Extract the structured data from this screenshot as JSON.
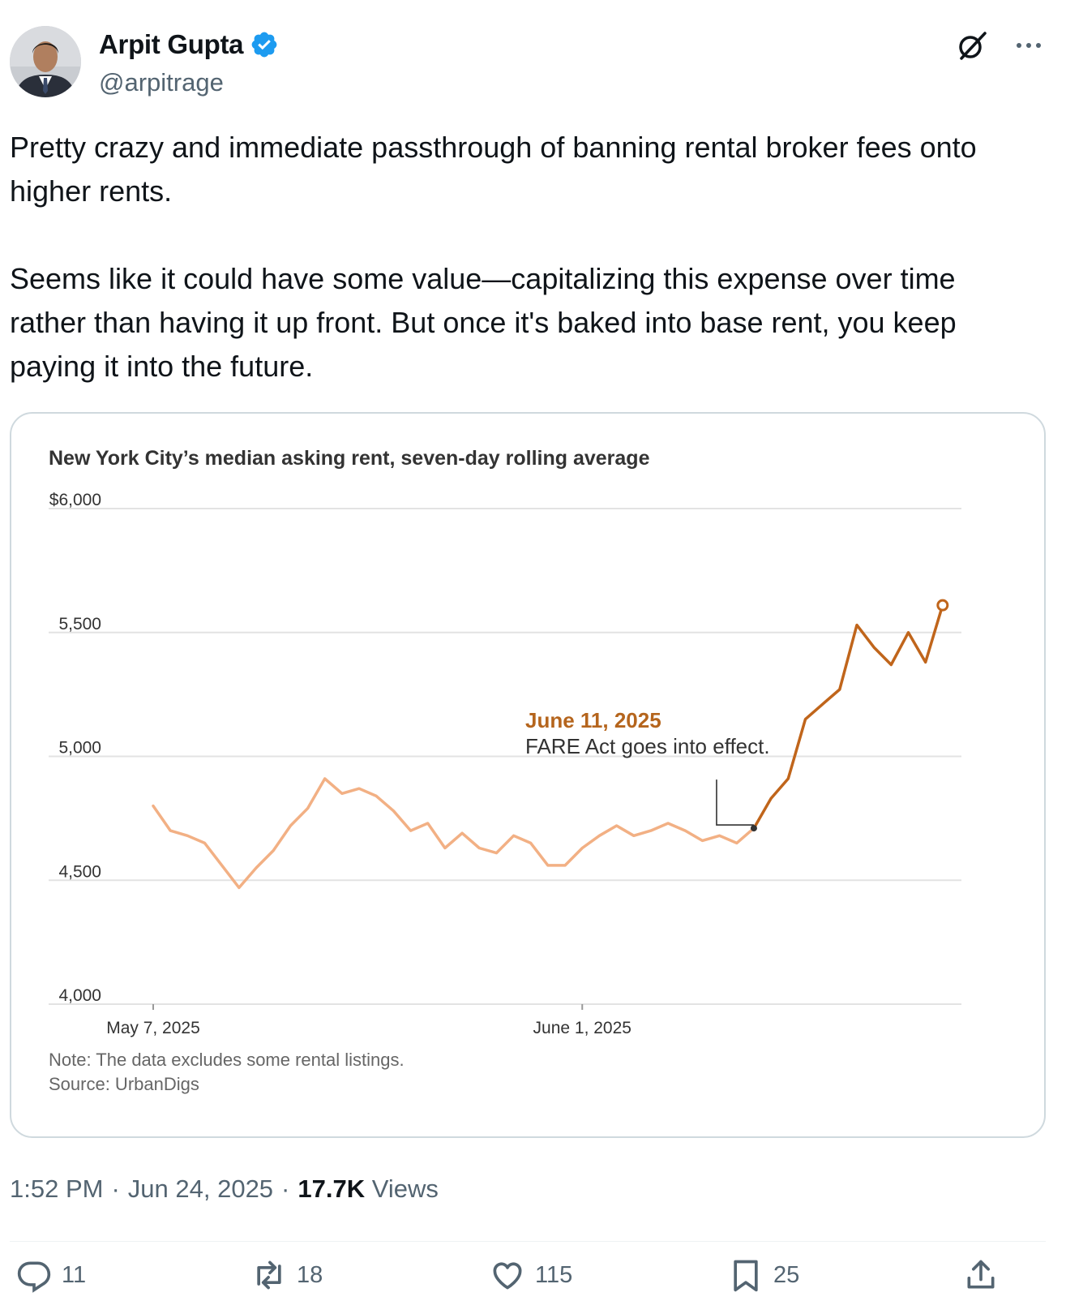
{
  "author": {
    "name": "Arpit Gupta",
    "handle": "@arpitrage",
    "verified": true
  },
  "tweet": {
    "paragraphs": [
      "Pretty crazy and immediate passthrough of banning rental broker fees onto higher rents.",
      "Seems like it could have some value—capitalizing this expense over time rather than having it up front. But once it's baked into base rent, you keep paying it into the future."
    ],
    "time": "1:52 PM",
    "separator": "·",
    "date": "Jun 24, 2025",
    "views_count": "17.7K",
    "views_label": "Views"
  },
  "actions": {
    "replies": "11",
    "reposts": "18",
    "likes": "115",
    "bookmarks": "25"
  },
  "icons": {
    "grok": "grok-icon",
    "more": "more-icon",
    "reply": "reply-icon",
    "repost": "repost-icon",
    "like": "like-icon",
    "bookmark": "bookmark-icon",
    "share": "share-icon"
  },
  "colors": {
    "verified_blue": "#1d9bf0",
    "before_line": "#f2b084",
    "after_line": "#c0651b",
    "annotation_date": "#b5651d"
  },
  "chart_data": {
    "type": "line",
    "title": "New York City’s median asking rent, seven-day rolling average",
    "y_ticks": [
      "$6,000",
      "5,500",
      "5,000",
      "4,500",
      "4,000"
    ],
    "y_tick_values": [
      6000,
      5500,
      5000,
      4500,
      4000
    ],
    "ylim": [
      4000,
      6000
    ],
    "x_ticks": [
      {
        "label": "May 7, 2025",
        "day": 0
      },
      {
        "label": "June 1, 2025",
        "day": 25
      }
    ],
    "series": [
      {
        "segment": "before",
        "x": [
          0,
          1,
          2,
          3,
          4,
          5,
          6,
          7,
          8,
          9,
          10,
          11,
          12,
          13,
          14,
          15,
          16,
          17,
          18,
          19,
          20,
          21,
          22,
          23,
          24,
          25,
          26,
          27,
          28,
          29,
          30,
          31,
          32,
          33,
          34,
          35
        ],
        "y": [
          4800,
          4700,
          4680,
          4650,
          4560,
          4470,
          4550,
          4620,
          4720,
          4790,
          4910,
          4850,
          4870,
          4840,
          4780,
          4700,
          4730,
          4630,
          4690,
          4630,
          4610,
          4680,
          4650,
          4560,
          4560,
          4630,
          4680,
          4720,
          4680,
          4700,
          4730,
          4700,
          4660,
          4680,
          4650,
          4710
        ]
      },
      {
        "segment": "after",
        "x": [
          35,
          36,
          37,
          38,
          39,
          40,
          41,
          42,
          43,
          44,
          45,
          46
        ],
        "y": [
          4710,
          4830,
          4910,
          5150,
          5210,
          5270,
          5530,
          5440,
          5370,
          5500,
          5380,
          5610
        ]
      }
    ],
    "annotation": {
      "date": "June 11, 2025",
      "text": "FARE Act goes into effect.",
      "day": 35
    },
    "note": "Note: The data excludes some rental listings.",
    "source": "Source: UrbanDigs",
    "grid": true,
    "legend": "none"
  }
}
